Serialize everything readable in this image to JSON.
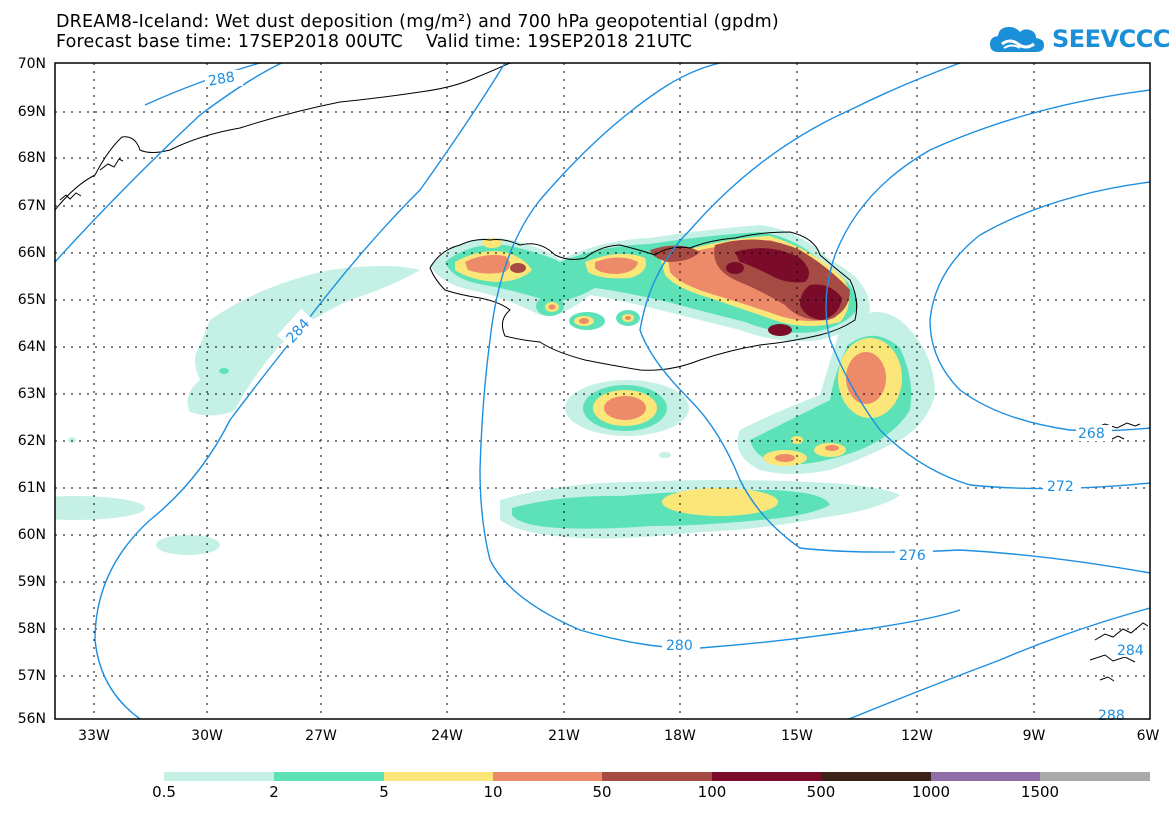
{
  "title": {
    "line1": "DREAM8-Iceland: Wet dust deposition (mg/m²) and 700 hPa geopotential (gpdm)",
    "line2": "Forecast base time: 17SEP2018 00UTC    Valid time: 19SEP2018 21UTC"
  },
  "logo": {
    "text": "SEEVCCC",
    "icon": "cloud-icon",
    "color": "#1a8fd8"
  },
  "map": {
    "lat_labels": [
      "70N",
      "69N",
      "68N",
      "67N",
      "66N",
      "65N",
      "64N",
      "63N",
      "62N",
      "61N",
      "60N",
      "59N",
      "58N",
      "57N",
      "56N"
    ],
    "lon_labels": [
      "33W",
      "30W",
      "27W",
      "24W",
      "21W",
      "18W",
      "15W",
      "12W",
      "9W",
      "6W"
    ],
    "contour_color": "#1e8fe0",
    "contour_labels": [
      "288",
      "284",
      "280",
      "276",
      "272",
      "268",
      "284",
      "288"
    ]
  },
  "colorbar": {
    "labels": [
      "0.5",
      "2",
      "5",
      "10",
      "50",
      "100",
      "500",
      "1000",
      "1500"
    ],
    "colors": [
      "#c4f0e6",
      "#5de2b8",
      "#fbe67a",
      "#ec8a6a",
      "#a64b43",
      "#7a0b29",
      "#3d2218",
      "#8f6ea8",
      "#a9a9a9"
    ]
  }
}
